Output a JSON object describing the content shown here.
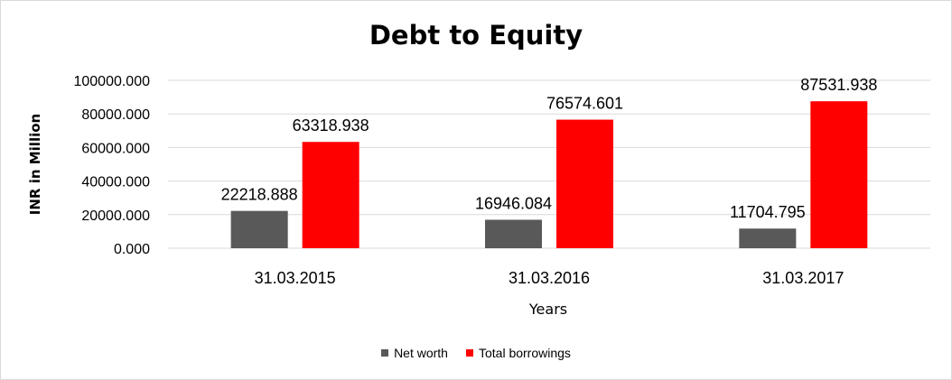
{
  "chart_data": {
    "type": "bar",
    "title": "Debt to Equity",
    "xlabel": "Years",
    "ylabel": "INR in Million",
    "categories": [
      "31.03.2015",
      "31.03.2016",
      "31.03.2017"
    ],
    "series": [
      {
        "name": "Net worth",
        "color": "#595959",
        "values": [
          22218.888,
          16946.084,
          11704.795
        ],
        "labels": [
          "22218.888",
          "16946.084",
          "11704.795"
        ]
      },
      {
        "name": "Total borrowings",
        "color": "#ff0000",
        "values": [
          63318.938,
          76574.601,
          87531.938
        ],
        "labels": [
          "63318.938",
          "76574.601",
          "87531.938"
        ]
      }
    ],
    "yticks": [
      "0.000",
      "20000.000",
      "40000.000",
      "60000.000",
      "80000.000",
      "100000.000"
    ],
    "ylim": [
      0,
      100000
    ],
    "grid": true,
    "legend_position": "bottom"
  }
}
